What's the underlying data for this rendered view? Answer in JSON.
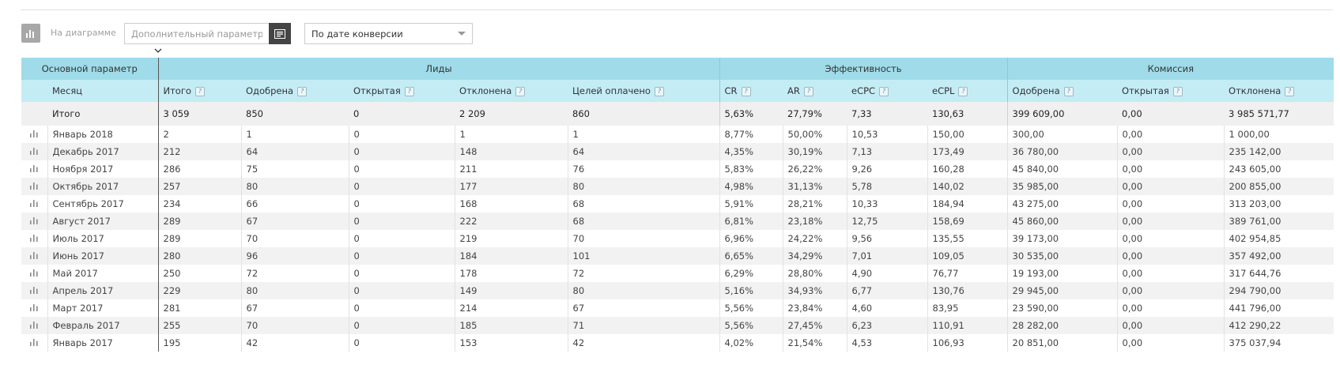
{
  "toolbar": {
    "chart_label": "На диаграмме",
    "param_placeholder": "Дополнительный параметр",
    "date_select_value": "По дате конверсии"
  },
  "groups": {
    "main": "Основной параметр",
    "leads": "Лиды",
    "efficiency": "Эффективность",
    "commission": "Комиссия"
  },
  "columns": {
    "month": "Месяц",
    "total": "Итого",
    "approved": "Одобрена",
    "open": "Открытая",
    "rejected": "Отклонена",
    "goals_paid": "Целей оплачено",
    "cr": "CR",
    "ar": "AR",
    "ecpc": "eCPC",
    "ecpl": "eCPL",
    "comm_approved": "Одобрена",
    "comm_open": "Открытая",
    "comm_rejected": "Отклонена",
    "help_glyph": "?"
  },
  "totals": {
    "label": "Итого",
    "values": [
      "3 059",
      "850",
      "0",
      "2 209",
      "860",
      "5,63%",
      "27,79%",
      "7,33",
      "130,63",
      "399 609,00",
      "0,00",
      "3 985 571,77"
    ]
  },
  "rows": [
    {
      "month": "Январь 2018",
      "values": [
        "2",
        "1",
        "0",
        "1",
        "1",
        "8,77%",
        "50,00%",
        "10,53",
        "150,00",
        "300,00",
        "0,00",
        "1 000,00"
      ]
    },
    {
      "month": "Декабрь 2017",
      "values": [
        "212",
        "64",
        "0",
        "148",
        "64",
        "4,35%",
        "30,19%",
        "7,13",
        "173,49",
        "36 780,00",
        "0,00",
        "235 142,00"
      ]
    },
    {
      "month": "Ноября 2017",
      "values": [
        "286",
        "75",
        "0",
        "211",
        "76",
        "5,83%",
        "26,22%",
        "9,26",
        "160,28",
        "45 840,00",
        "0,00",
        "243 605,00"
      ]
    },
    {
      "month": "Октябрь 2017",
      "values": [
        "257",
        "80",
        "0",
        "177",
        "80",
        "4,98%",
        "31,13%",
        "5,78",
        "140,02",
        "35 985,00",
        "0,00",
        "200 855,00"
      ]
    },
    {
      "month": "Сентябрь 2017",
      "values": [
        "234",
        "66",
        "0",
        "168",
        "68",
        "5,91%",
        "28,21%",
        "10,33",
        "184,94",
        "43 275,00",
        "0,00",
        "313 203,00"
      ]
    },
    {
      "month": "Август 2017",
      "values": [
        "289",
        "67",
        "0",
        "222",
        "68",
        "6,81%",
        "23,18%",
        "12,75",
        "158,69",
        "45 860,00",
        "0,00",
        "389 761,00"
      ]
    },
    {
      "month": "Июль 2017",
      "values": [
        "289",
        "70",
        "0",
        "219",
        "70",
        "6,96%",
        "24,22%",
        "9,56",
        "135,55",
        "39 173,00",
        "0,00",
        "402 954,85"
      ]
    },
    {
      "month": "Июнь 2017",
      "values": [
        "280",
        "96",
        "0",
        "184",
        "101",
        "6,65%",
        "34,29%",
        "7,01",
        "109,05",
        "30 535,00",
        "0,00",
        "357 492,00"
      ]
    },
    {
      "month": "Май 2017",
      "values": [
        "250",
        "72",
        "0",
        "178",
        "72",
        "6,29%",
        "28,80%",
        "4,90",
        "76,77",
        "19 193,00",
        "0,00",
        "317 644,76"
      ]
    },
    {
      "month": "Апрель 2017",
      "values": [
        "229",
        "80",
        "0",
        "149",
        "80",
        "5,16%",
        "34,93%",
        "6,77",
        "130,76",
        "29 945,00",
        "0,00",
        "294 790,00"
      ]
    },
    {
      "month": "Март 2017",
      "values": [
        "281",
        "67",
        "0",
        "214",
        "67",
        "5,56%",
        "23,84%",
        "4,60",
        "83,95",
        "23 590,00",
        "0,00",
        "441 796,00"
      ]
    },
    {
      "month": "Февраль 2017",
      "values": [
        "255",
        "70",
        "0",
        "185",
        "71",
        "5,56%",
        "27,45%",
        "6,23",
        "110,91",
        "28 282,00",
        "0,00",
        "412 290,22"
      ]
    },
    {
      "month": "Январь 2017",
      "values": [
        "195",
        "42",
        "0",
        "153",
        "42",
        "4,02%",
        "21,54%",
        "4,53",
        "106,93",
        "20 851,00",
        "0,00",
        "375 037,94"
      ]
    }
  ]
}
